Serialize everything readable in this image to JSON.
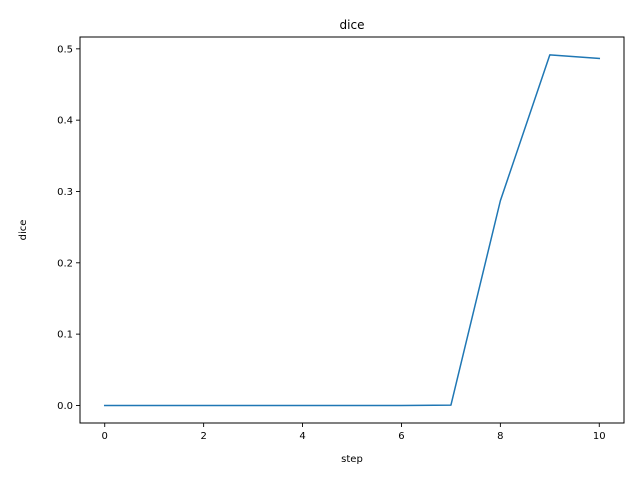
{
  "chart_data": {
    "type": "line",
    "title": "dice",
    "xlabel": "step",
    "ylabel": "dice",
    "xlim": [
      -0.5,
      10.5
    ],
    "ylim": [
      -0.0246,
      0.5166
    ],
    "xticks": [
      0,
      2,
      4,
      6,
      8,
      10
    ],
    "xtick_labels": [
      "0",
      "2",
      "4",
      "6",
      "8",
      "10"
    ],
    "yticks": [
      0.0,
      0.1,
      0.2,
      0.3,
      0.4,
      0.5
    ],
    "ytick_labels": [
      "0.0",
      "0.1",
      "0.2",
      "0.3",
      "0.4",
      "0.5"
    ],
    "grid": false,
    "series": [
      {
        "color": "#1f77b4",
        "x": [
          0,
          1,
          2,
          3,
          4,
          5,
          6,
          7,
          8,
          9,
          10
        ],
        "y": [
          0.0,
          0.0,
          0.0,
          0.0,
          0.0,
          0.0,
          0.0,
          0.0004,
          0.287,
          0.4916,
          0.4866
        ]
      }
    ]
  }
}
